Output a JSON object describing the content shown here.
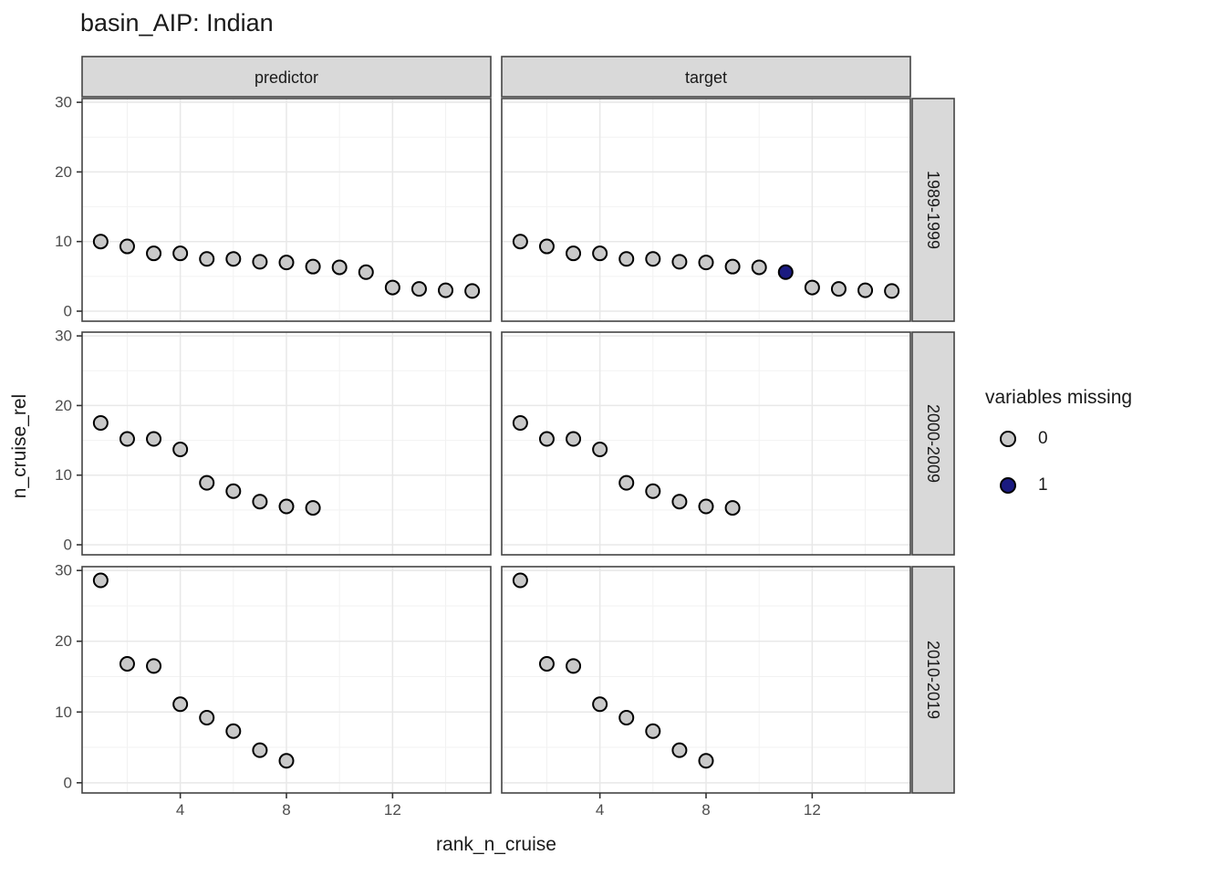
{
  "chart_data": {
    "type": "scatter",
    "title": "basin_AIP: Indian",
    "xlabel": "rank_n_cruise",
    "ylabel": "n_cruise_rel",
    "x_ticks": [
      4,
      8,
      12
    ],
    "x_minor": [
      2,
      6,
      10,
      14
    ],
    "y_ticks": [
      0,
      10,
      20,
      30
    ],
    "y_minor": [
      5,
      15,
      25
    ],
    "xlim": [
      0.3,
      15.7
    ],
    "ylim": [
      -1.44,
      30.54
    ],
    "grid": "major+minor",
    "col_facets": [
      "predictor",
      "target"
    ],
    "row_facets": [
      "1989-1999",
      "2000-2009",
      "2010-2019"
    ],
    "legend": {
      "title": "variables missing",
      "position": "right",
      "entries": [
        {
          "label": "0",
          "color": "#c9c9c9"
        },
        {
          "label": "1",
          "color": "#1a1a80"
        }
      ]
    },
    "panels": [
      {
        "col": "predictor",
        "row": "1989-1999",
        "x": [
          1,
          2,
          3,
          4,
          5,
          6,
          7,
          8,
          9,
          10,
          11,
          12,
          13,
          14,
          15
        ],
        "y": [
          10.0,
          9.3,
          8.3,
          8.3,
          7.5,
          7.5,
          7.1,
          7.0,
          6.4,
          6.3,
          5.6,
          3.4,
          3.2,
          3.0,
          2.9
        ],
        "missing": [
          0,
          0,
          0,
          0,
          0,
          0,
          0,
          0,
          0,
          0,
          0,
          0,
          0,
          0,
          0
        ]
      },
      {
        "col": "target",
        "row": "1989-1999",
        "x": [
          1,
          2,
          3,
          4,
          5,
          6,
          7,
          8,
          9,
          10,
          11,
          12,
          13,
          14,
          15
        ],
        "y": [
          10.0,
          9.3,
          8.3,
          8.3,
          7.5,
          7.5,
          7.1,
          7.0,
          6.4,
          6.3,
          5.6,
          3.4,
          3.2,
          3.0,
          2.9
        ],
        "missing": [
          0,
          0,
          0,
          0,
          0,
          0,
          0,
          0,
          0,
          0,
          1,
          0,
          0,
          0,
          0
        ]
      },
      {
        "col": "predictor",
        "row": "2000-2009",
        "x": [
          1,
          2,
          3,
          4,
          5,
          6,
          7,
          8,
          9
        ],
        "y": [
          17.5,
          15.2,
          15.2,
          13.7,
          8.9,
          7.7,
          6.2,
          5.5,
          5.3
        ],
        "missing": [
          0,
          0,
          0,
          0,
          0,
          0,
          0,
          0,
          0
        ]
      },
      {
        "col": "target",
        "row": "2000-2009",
        "x": [
          1,
          2,
          3,
          4,
          5,
          6,
          7,
          8,
          9
        ],
        "y": [
          17.5,
          15.2,
          15.2,
          13.7,
          8.9,
          7.7,
          6.2,
          5.5,
          5.3
        ],
        "missing": [
          0,
          0,
          0,
          0,
          0,
          0,
          0,
          0,
          0
        ]
      },
      {
        "col": "predictor",
        "row": "2010-2019",
        "x": [
          1,
          2,
          3,
          4,
          5,
          6,
          7,
          8
        ],
        "y": [
          28.6,
          16.8,
          16.5,
          11.1,
          9.2,
          7.3,
          4.6,
          3.1
        ],
        "missing": [
          0,
          0,
          0,
          0,
          0,
          0,
          0,
          0
        ]
      },
      {
        "col": "target",
        "row": "2010-2019",
        "x": [
          1,
          2,
          3,
          4,
          5,
          6,
          7,
          8
        ],
        "y": [
          28.6,
          16.8,
          16.5,
          11.1,
          9.2,
          7.3,
          4.6,
          3.1
        ],
        "missing": [
          0,
          0,
          0,
          0,
          0,
          0,
          0,
          0
        ]
      }
    ],
    "colors": {
      "point_fill_0": "#c9c9c9",
      "point_fill_1": "#1a1a80",
      "point_stroke": "#000000",
      "strip_fill": "#d9d9d9",
      "strip_border": "#444444",
      "panel_border": "#444444",
      "grid_major": "#e8e8e8",
      "grid_minor": "#f2f2f2",
      "axis_text": "#4d4d4d",
      "tick_mark": "#333333"
    }
  }
}
